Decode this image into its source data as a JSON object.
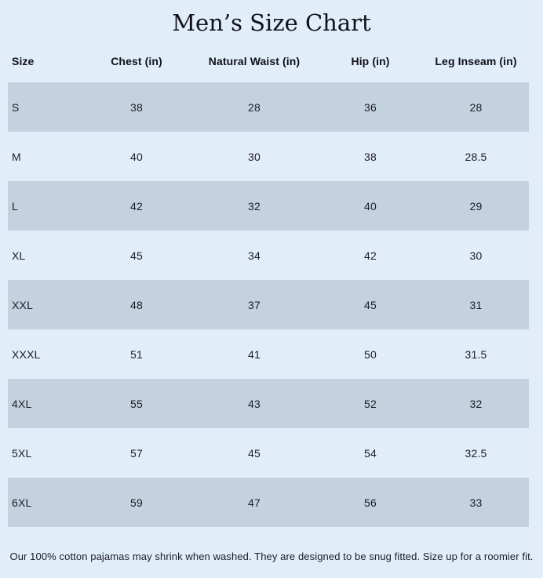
{
  "theme": {
    "background": "#e1edf8",
    "band_color": "#c4d2e0",
    "text_color": "#1c1c26",
    "heading_color": "#101018"
  },
  "title": "Men’s Size Chart",
  "table": {
    "columns": [
      "Size",
      "Chest (in)",
      "Natural Waist (in)",
      "Hip (in)",
      "Leg Inseam (in)"
    ],
    "rows": [
      [
        "S",
        "38",
        "28",
        "36",
        "28"
      ],
      [
        "M",
        "40",
        "30",
        "38",
        "28.5"
      ],
      [
        "L",
        "42",
        "32",
        "40",
        "29"
      ],
      [
        "XL",
        "45",
        "34",
        "42",
        "30"
      ],
      [
        "XXL",
        "48",
        "37",
        "45",
        "31"
      ],
      [
        "XXXL",
        "51",
        "41",
        "50",
        "31.5"
      ],
      [
        "4XL",
        "55",
        "43",
        "52",
        "32"
      ],
      [
        "5XL",
        "57",
        "45",
        "54",
        "32.5"
      ],
      [
        "6XL",
        "59",
        "47",
        "56",
        "33"
      ]
    ]
  },
  "footer": {
    "note": "Our 100% cotton pajamas may shrink when washed. They are designed to be snug fitted. Size up for a roomier fit."
  },
  "chart_data": {
    "type": "table",
    "title": "Men’s Size Chart",
    "columns": [
      "Size",
      "Chest (in)",
      "Natural Waist (in)",
      "Hip (in)",
      "Leg Inseam (in)"
    ],
    "rows": [
      {
        "size": "S",
        "chest_in": 38,
        "natural_waist_in": 28,
        "hip_in": 36,
        "leg_inseam_in": 28
      },
      {
        "size": "M",
        "chest_in": 40,
        "natural_waist_in": 30,
        "hip_in": 38,
        "leg_inseam_in": 28.5
      },
      {
        "size": "L",
        "chest_in": 42,
        "natural_waist_in": 32,
        "hip_in": 40,
        "leg_inseam_in": 29
      },
      {
        "size": "XL",
        "chest_in": 45,
        "natural_waist_in": 34,
        "hip_in": 42,
        "leg_inseam_in": 30
      },
      {
        "size": "XXL",
        "chest_in": 48,
        "natural_waist_in": 37,
        "hip_in": 45,
        "leg_inseam_in": 31
      },
      {
        "size": "XXXL",
        "chest_in": 51,
        "natural_waist_in": 41,
        "hip_in": 50,
        "leg_inseam_in": 31.5
      },
      {
        "size": "4XL",
        "chest_in": 55,
        "natural_waist_in": 43,
        "hip_in": 52,
        "leg_inseam_in": 32
      },
      {
        "size": "5XL",
        "chest_in": 57,
        "natural_waist_in": 45,
        "hip_in": 54,
        "leg_inseam_in": 32.5
      },
      {
        "size": "6XL",
        "chest_in": 59,
        "natural_waist_in": 47,
        "hip_in": 56,
        "leg_inseam_in": 33
      }
    ],
    "layout": {
      "alternating_row_shading": true,
      "shaded_rows": "odd (S, L, XXL, 4XL, 6XL)",
      "grid": false,
      "legend": "none"
    }
  }
}
